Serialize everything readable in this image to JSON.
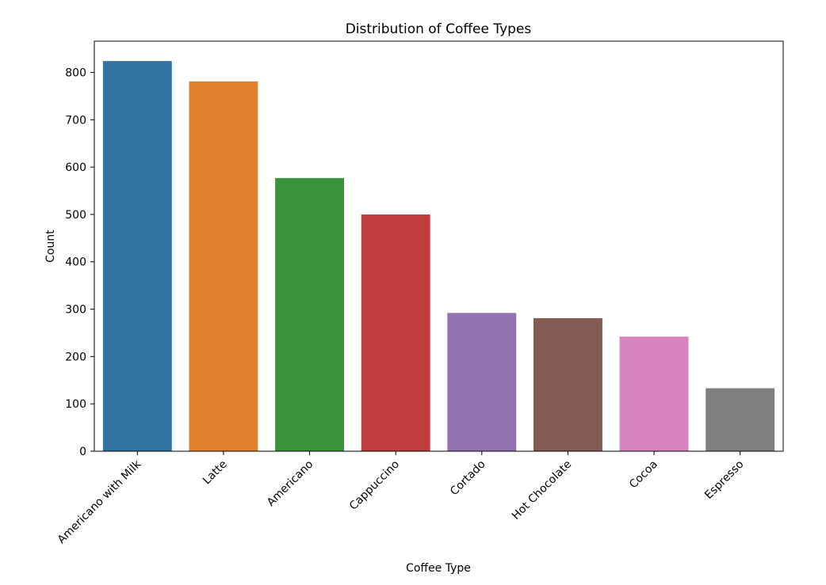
{
  "chart_data": {
    "type": "bar",
    "title": "Distribution of Coffee Types",
    "xlabel": "Coffee Type",
    "ylabel": "Count",
    "categories": [
      "Americano with Milk",
      "Latte",
      "Americano",
      "Cappuccino",
      "Cortado",
      "Hot Chocolate",
      "Cocoa",
      "Espresso"
    ],
    "values": [
      824,
      781,
      577,
      500,
      292,
      281,
      242,
      133
    ],
    "colors": [
      "#3274a1",
      "#e1812c",
      "#3a923a",
      "#c03d3e",
      "#9372b2",
      "#845b53",
      "#d684bd",
      "#7f7f7f"
    ],
    "ylim": [
      0,
      866
    ],
    "yticks": [
      0,
      100,
      200,
      300,
      400,
      500,
      600,
      700,
      800
    ],
    "grid": false,
    "legend": "none"
  }
}
